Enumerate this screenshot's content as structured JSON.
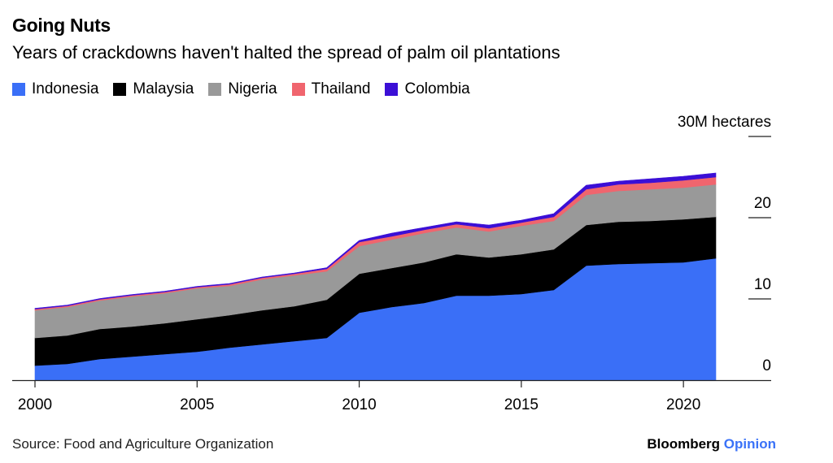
{
  "chart_data": {
    "type": "area",
    "stacked": true,
    "title": "Going Nuts",
    "subtitle": "Years of crackdowns haven't halted the spread of palm oil plantations",
    "ylabel": "30M hectares",
    "ylim": [
      0,
      30
    ],
    "yticks": [
      {
        "value": 0,
        "label": "0"
      },
      {
        "value": 10,
        "label": "10"
      },
      {
        "value": 20,
        "label": "20"
      },
      {
        "value": 30,
        "label": "30M hectares"
      }
    ],
    "xlim": [
      2000,
      2021
    ],
    "xticks": [
      {
        "value": 2000,
        "label": "2000"
      },
      {
        "value": 2005,
        "label": "2005"
      },
      {
        "value": 2010,
        "label": "2010"
      },
      {
        "value": 2015,
        "label": "2015"
      },
      {
        "value": 2020,
        "label": "2020"
      }
    ],
    "legend_position": "top-left",
    "x": [
      2000,
      2001,
      2002,
      2003,
      2004,
      2005,
      2006,
      2007,
      2008,
      2009,
      2010,
      2011,
      2012,
      2013,
      2014,
      2015,
      2016,
      2017,
      2018,
      2019,
      2020,
      2021
    ],
    "series": [
      {
        "name": "Indonesia",
        "color": "#3a6ff7",
        "values": [
          1.8,
          2.0,
          2.6,
          2.9,
          3.2,
          3.5,
          4.0,
          4.4,
          4.8,
          5.2,
          8.3,
          9.0,
          9.5,
          10.4,
          10.4,
          10.6,
          11.1,
          14.1,
          14.3,
          14.4,
          14.5,
          15.0
        ]
      },
      {
        "name": "Malaysia",
        "color": "#000000",
        "values": [
          3.4,
          3.5,
          3.7,
          3.7,
          3.8,
          4.0,
          4.0,
          4.2,
          4.3,
          4.7,
          4.8,
          4.8,
          5.0,
          5.1,
          4.7,
          4.9,
          5.0,
          5.0,
          5.2,
          5.2,
          5.3,
          5.1
        ]
      },
      {
        "name": "Nigeria",
        "color": "#999999",
        "values": [
          3.4,
          3.5,
          3.5,
          3.7,
          3.7,
          3.8,
          3.6,
          3.8,
          3.8,
          3.5,
          3.4,
          3.5,
          3.6,
          3.3,
          3.2,
          3.5,
          3.5,
          3.7,
          3.8,
          3.9,
          3.9,
          4.0
        ]
      },
      {
        "name": "Thailand",
        "color": "#f0656e",
        "values": [
          0.15,
          0.15,
          0.15,
          0.15,
          0.15,
          0.15,
          0.2,
          0.2,
          0.2,
          0.3,
          0.5,
          0.4,
          0.4,
          0.4,
          0.4,
          0.4,
          0.5,
          0.7,
          0.8,
          0.8,
          0.9,
          0.9
        ]
      },
      {
        "name": "Colombia",
        "color": "#3b0fd6",
        "values": [
          0.1,
          0.1,
          0.1,
          0.1,
          0.1,
          0.1,
          0.1,
          0.1,
          0.1,
          0.15,
          0.2,
          0.4,
          0.3,
          0.3,
          0.4,
          0.3,
          0.4,
          0.5,
          0.4,
          0.5,
          0.5,
          0.5
        ]
      }
    ]
  },
  "footer": {
    "source": "Source: Food and Agriculture Organization",
    "brand": "Bloomberg",
    "brand_suffix": "Opinion"
  }
}
